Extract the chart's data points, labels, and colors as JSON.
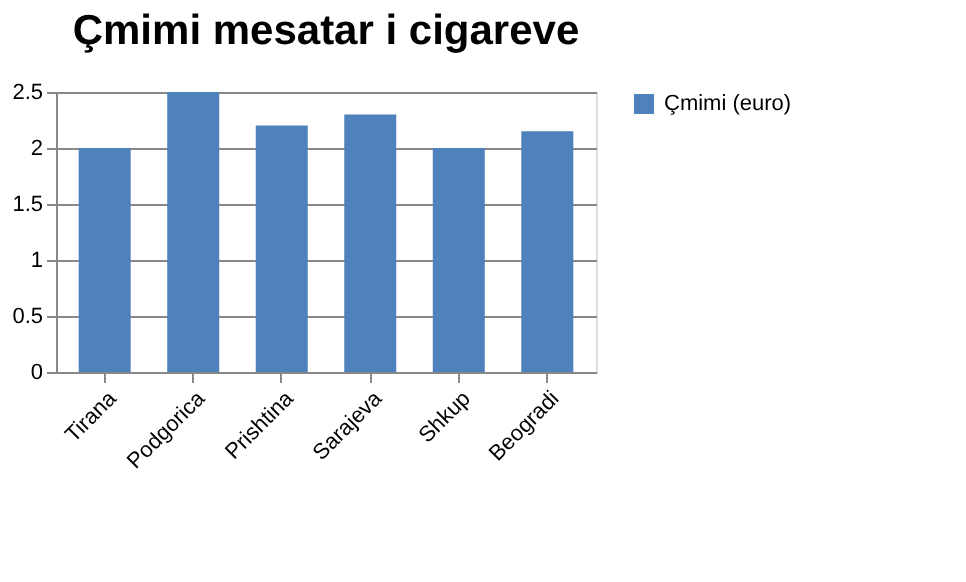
{
  "chart_data": {
    "type": "bar",
    "title": "Çmimi mesatar i cigareve",
    "categories": [
      "Tirana",
      "Podgorica",
      "Prishtina",
      "Sarajeva",
      "Shkup",
      "Beogradi"
    ],
    "series": [
      {
        "name": "Çmimi (euro)",
        "color": "#4f81bd",
        "values": [
          2.0,
          2.5,
          2.2,
          2.3,
          2.0,
          2.15
        ]
      }
    ],
    "ylim": [
      0,
      2.5
    ],
    "yticks": [
      0,
      0.5,
      1,
      1.5,
      2,
      2.5
    ],
    "grid": "y",
    "legend": "right"
  }
}
